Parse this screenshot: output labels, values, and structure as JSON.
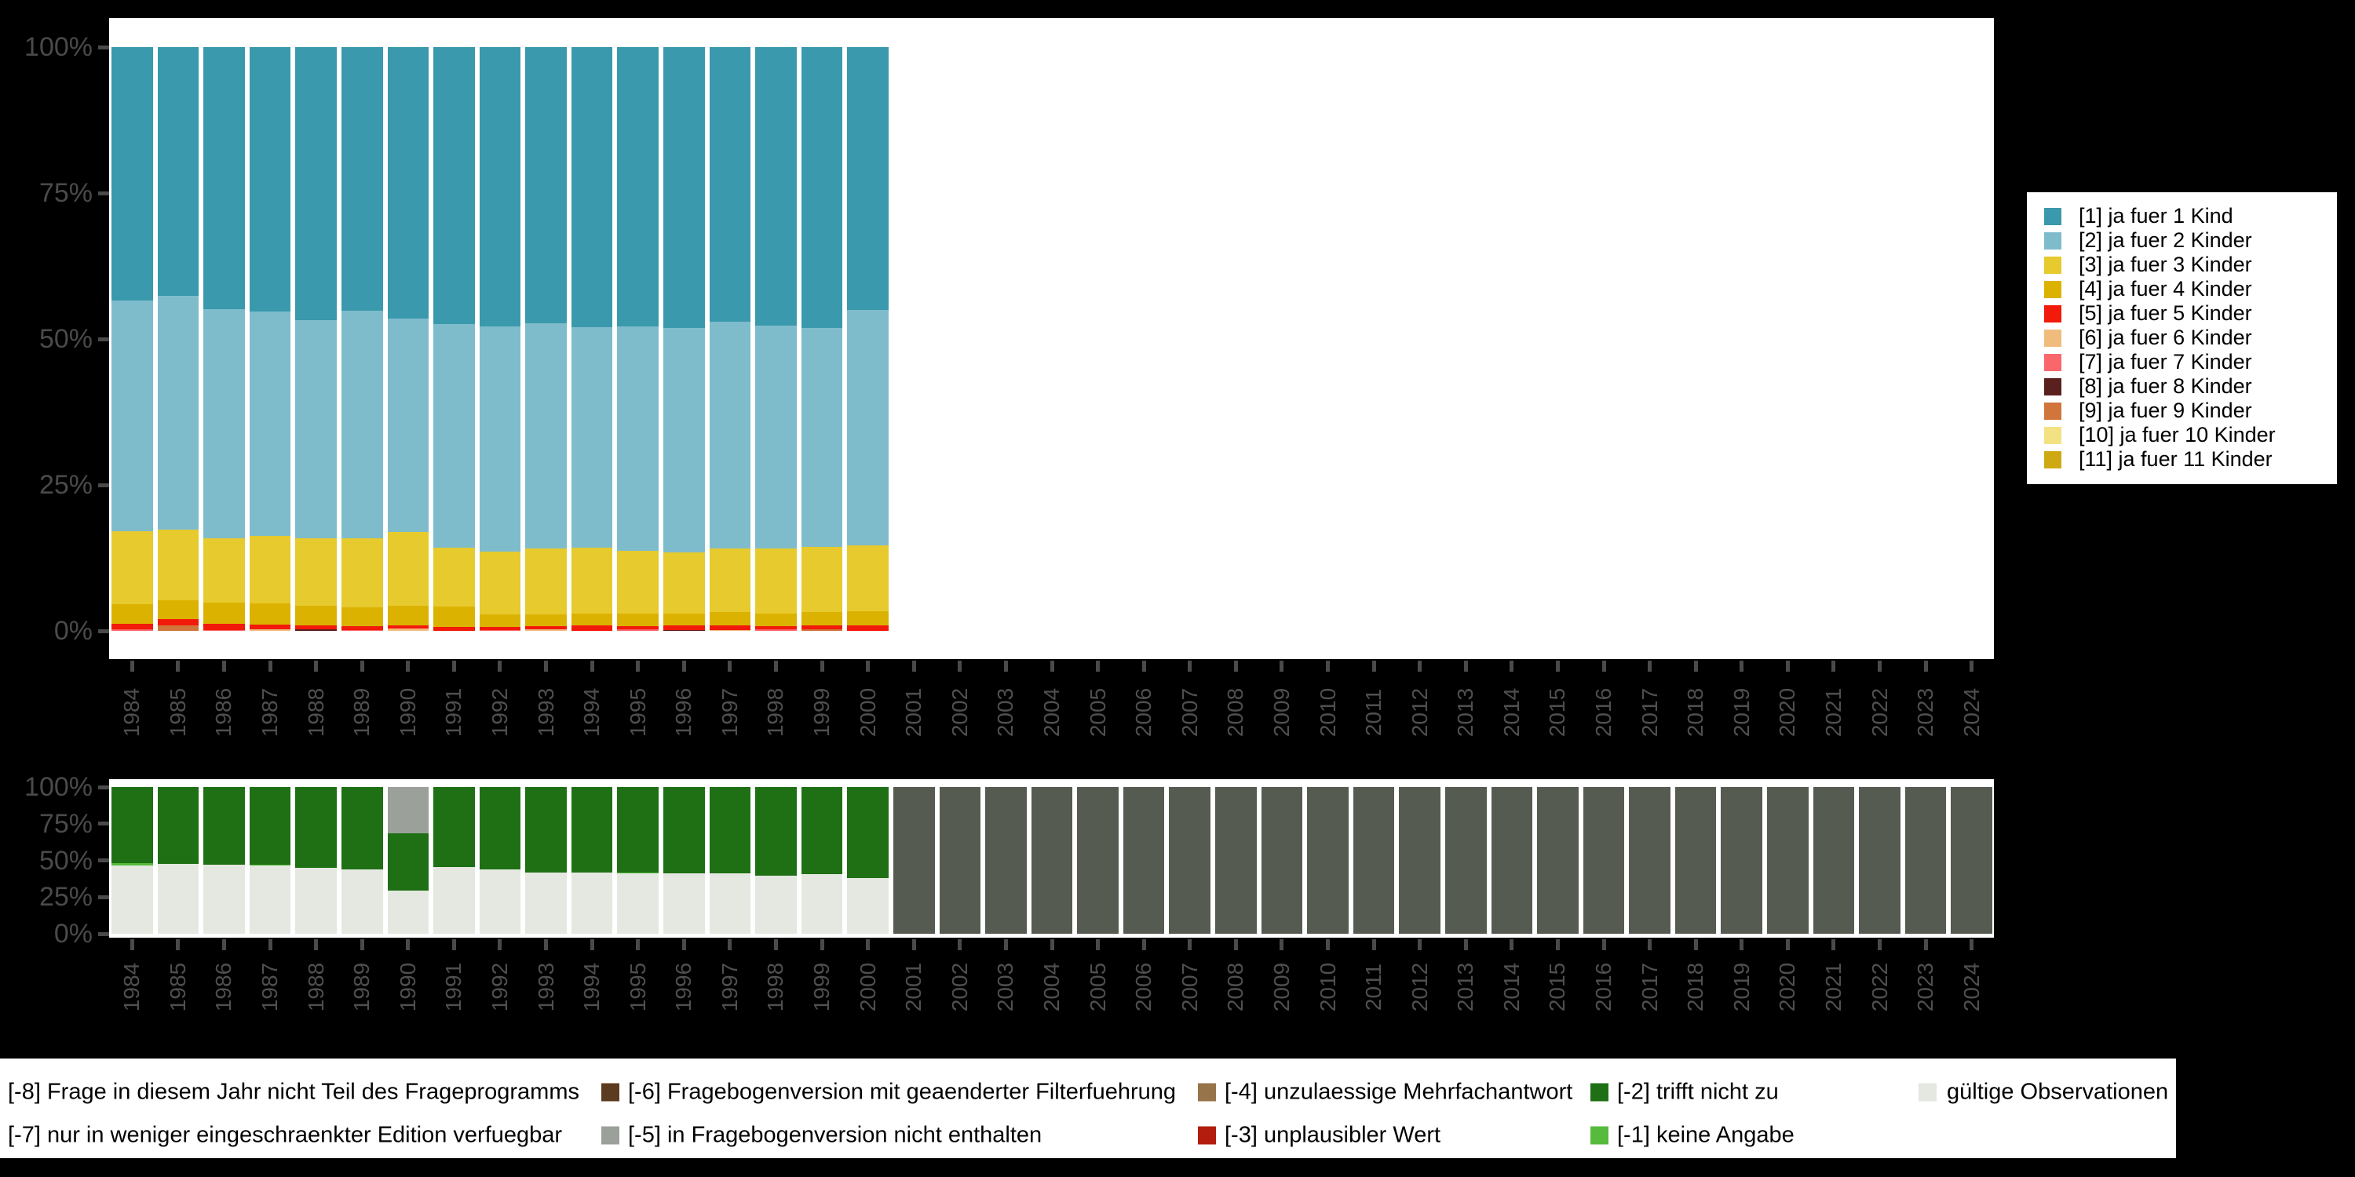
{
  "background_color": "#000000",
  "axis": {
    "tick_color": "#4a4a4a",
    "label_color": "#4f4f4f"
  },
  "chart_data": [
    {
      "type": "bar",
      "stacked": true,
      "title": "",
      "xlabel": "",
      "ylabel": "",
      "ylim": [
        0,
        100
      ],
      "yticks": [
        "0%",
        "25%",
        "50%",
        "75%",
        "100%"
      ],
      "categories": [
        "1984",
        "1985",
        "1986",
        "1987",
        "1988",
        "1989",
        "1990",
        "1991",
        "1992",
        "1993",
        "1994",
        "1995",
        "1996",
        "1997",
        "1998",
        "1999",
        "2000",
        "2001",
        "2002",
        "2003",
        "2004",
        "2005",
        "2006",
        "2007",
        "2008",
        "2009",
        "2010",
        "2011",
        "2012",
        "2013",
        "2014",
        "2015",
        "2016",
        "2017",
        "2018",
        "2019",
        "2020",
        "2021",
        "2022",
        "2023",
        "2024"
      ],
      "legend_position": "right",
      "grid": false,
      "series": [
        {
          "name": "[1] ja fuer 1 Kind",
          "color": "#3a99ac",
          "values_by_year": {
            "1984": 43.4,
            "1985": 42.6,
            "1986": 44.9,
            "1987": 45.3,
            "1988": 46.8,
            "1989": 45.2,
            "1990": 46.5,
            "1991": 47.4,
            "1992": 47.8,
            "1993": 47.3,
            "1994": 48.0,
            "1995": 47.8,
            "1996": 48.1,
            "1997": 47.0,
            "1998": 47.7,
            "1999": 48.1,
            "2000": 45.0
          }
        },
        {
          "name": "[2] ja fuer 2 Kinder",
          "color": "#7fbccb",
          "values_by_year": {
            "1984": 39.5,
            "1985": 40.1,
            "1986": 39.2,
            "1987": 38.4,
            "1988": 37.3,
            "1989": 38.9,
            "1990": 36.6,
            "1991": 38.4,
            "1992": 38.6,
            "1993": 38.6,
            "1994": 37.8,
            "1995": 38.5,
            "1996": 38.5,
            "1997": 38.9,
            "1998": 38.2,
            "1999": 37.5,
            "2000": 40.3
          }
        },
        {
          "name": "[3] ja fuer 3 Kinder",
          "color": "#e6ca2e",
          "values_by_year": {
            "1984": 12.5,
            "1985": 12.1,
            "1986": 11.1,
            "1987": 11.6,
            "1988": 11.6,
            "1989": 11.9,
            "1990": 12.6,
            "1991": 10.0,
            "1992": 10.8,
            "1993": 11.3,
            "1994": 11.3,
            "1995": 10.8,
            "1996": 10.4,
            "1997": 10.9,
            "1998": 11.1,
            "1999": 11.2,
            "2000": 11.4
          }
        },
        {
          "name": "[4] ja fuer 4 Kinder",
          "color": "#dcb200",
          "values_by_year": {
            "1984": 3.4,
            "1985": 3.2,
            "1986": 3.6,
            "1987": 3.6,
            "1988": 3.4,
            "1989": 3.2,
            "1990": 3.4,
            "1991": 3.5,
            "1992": 2.1,
            "1993": 2.0,
            "1994": 2.0,
            "1995": 2.1,
            "1996": 2.1,
            "1997": 2.3,
            "1998": 2.2,
            "1999": 2.3,
            "2000": 2.4
          }
        },
        {
          "name": "[5] ja fuer 5 Kinder",
          "color": "#f21a0a",
          "values_by_year": {
            "1984": 0.9,
            "1985": 1.1,
            "1986": 1.0,
            "1987": 0.8,
            "1988": 0.6,
            "1989": 0.6,
            "1990": 0.5,
            "1991": 0.7,
            "1992": 0.5,
            "1993": 0.5,
            "1994": 0.9,
            "1995": 0.5,
            "1996": 0.7,
            "1997": 0.7,
            "1998": 0.5,
            "1999": 0.6,
            "2000": 0.9
          }
        },
        {
          "name": "[6] ja fuer 6 Kinder",
          "color": "#f0bc7e",
          "values_by_year": {
            "1987": 0.3,
            "1990": 0.4,
            "1993": 0.3,
            "1997": 0.2
          }
        },
        {
          "name": "[7] ja fuer 7 Kinder",
          "color": "#f9676c",
          "values_by_year": {
            "1984": 0.3,
            "1986": 0.2,
            "1989": 0.2,
            "1992": 0.2,
            "1995": 0.3,
            "1998": 0.3
          }
        },
        {
          "name": "[8] ja fuer 8 Kinder",
          "color": "#5a201d",
          "values_by_year": {
            "1988": 0.3,
            "1996": 0.2
          }
        },
        {
          "name": "[9] ja fuer 9 Kinder",
          "color": "#d0753b",
          "values_by_year": {
            "1985": 0.9,
            "1999": 0.3
          }
        },
        {
          "name": "[10] ja fuer 10 Kinder",
          "color": "#f3e283",
          "values_by_year": {}
        },
        {
          "name": "[11] ja fuer 11 Kinder",
          "color": "#cfa913",
          "values_by_year": {}
        }
      ]
    },
    {
      "type": "bar",
      "stacked": true,
      "title": "",
      "xlabel": "",
      "ylabel": "",
      "ylim": [
        0,
        100
      ],
      "yticks": [
        "0%",
        "25%",
        "50%",
        "75%",
        "100%"
      ],
      "categories": [
        "1984",
        "1985",
        "1986",
        "1987",
        "1988",
        "1989",
        "1990",
        "1991",
        "1992",
        "1993",
        "1994",
        "1995",
        "1996",
        "1997",
        "1998",
        "1999",
        "2000",
        "2001",
        "2002",
        "2003",
        "2004",
        "2005",
        "2006",
        "2007",
        "2008",
        "2009",
        "2010",
        "2011",
        "2012",
        "2013",
        "2014",
        "2015",
        "2016",
        "2017",
        "2018",
        "2019",
        "2020",
        "2021",
        "2022",
        "2023",
        "2024"
      ],
      "legend_position": "bottom",
      "grid": false,
      "series": [
        {
          "name": "gültige Observationen",
          "color": "#e4e8e1",
          "values_by_year": {
            "1984": 46.5,
            "1985": 47.6,
            "1986": 47.1,
            "1987": 46.5,
            "1988": 44.9,
            "1989": 43.9,
            "1990": 29.4,
            "1991": 45.5,
            "1992": 43.9,
            "1993": 41.7,
            "1994": 41.7,
            "1995": 41.2,
            "1996": 41.2,
            "1997": 41.2,
            "1998": 39.6,
            "1999": 40.6,
            "2000": 38.0
          }
        },
        {
          "name": "[-1] keine Angabe",
          "color": "#56bb3c",
          "values_by_year": {
            "1984": 1.5,
            "1987": 0.8,
            "1995": 0.5
          }
        },
        {
          "name": "[-2] trifft nicht zu",
          "color": "#1f7015",
          "values_by_year": {
            "1984": 52.0,
            "1985": 52.4,
            "1986": 52.9,
            "1987": 52.7,
            "1988": 55.1,
            "1989": 56.1,
            "1990": 39.0,
            "1991": 54.5,
            "1992": 56.1,
            "1993": 58.3,
            "1994": 58.3,
            "1995": 58.3,
            "1996": 58.8,
            "1997": 58.8,
            "1998": 60.4,
            "1999": 59.4,
            "2000": 62.0
          }
        },
        {
          "name": "[-5] in Fragebogenversion nicht enthalten",
          "color": "#9ba19a",
          "values_by_year": {
            "1990": 31.6
          }
        },
        {
          "name": "[-8] Frage in diesem Jahr nicht Teil des Frageprogramms",
          "color": "#565b52",
          "values_by_year": {
            "2001": 100,
            "2002": 100,
            "2003": 100,
            "2004": 100,
            "2005": 100,
            "2006": 100,
            "2007": 100,
            "2008": 100,
            "2009": 100,
            "2010": 100,
            "2011": 100,
            "2012": 100,
            "2013": 100,
            "2014": 100,
            "2015": 100,
            "2016": 100,
            "2017": 100,
            "2018": 100,
            "2019": 100,
            "2020": 100,
            "2021": 100,
            "2022": 100,
            "2023": 100,
            "2024": 100
          }
        }
      ]
    }
  ],
  "legend_right": {
    "entries": [
      {
        "label": "[1] ja fuer 1 Kind",
        "color": "#3a99ac"
      },
      {
        "label": "[2] ja fuer 2 Kinder",
        "color": "#7fbccb"
      },
      {
        "label": "[3] ja fuer 3 Kinder",
        "color": "#e6ca2e"
      },
      {
        "label": "[4] ja fuer 4 Kinder",
        "color": "#dcb200"
      },
      {
        "label": "[5] ja fuer 5 Kinder",
        "color": "#f21a0a"
      },
      {
        "label": "[6] ja fuer 6 Kinder",
        "color": "#f0bc7e"
      },
      {
        "label": "[7] ja fuer 7 Kinder",
        "color": "#f9676c"
      },
      {
        "label": "[8] ja fuer 8 Kinder",
        "color": "#5a201d"
      },
      {
        "label": "[9] ja fuer 9 Kinder",
        "color": "#d0753b"
      },
      {
        "label": "[10] ja fuer 10 Kinder",
        "color": "#f3e283"
      },
      {
        "label": "[11] ja fuer 11 Kinder",
        "color": "#cfa913"
      }
    ]
  },
  "legend_bottom": {
    "rows": [
      [
        {
          "label": "[-8] Frage in diesem Jahr nicht Teil des Frageprogramms",
          "swatch": null
        },
        {
          "label": "[-6] Fragebogenversion mit geaenderter Filterfuehrung",
          "swatch": "#5c3c20"
        },
        {
          "label": "[-4] unzulaessige Mehrfachantwort",
          "swatch": "#97744a"
        },
        {
          "label": "[-2] trifft nicht zu",
          "swatch": "#1f7015"
        },
        {
          "label": "gültige Observationen",
          "swatch": "#e4e8e1"
        }
      ],
      [
        {
          "label": "[-7] nur in weniger eingeschraenkter Edition verfuegbar",
          "swatch": null
        },
        {
          "label": "[-5] in Fragebogenversion nicht enthalten",
          "swatch": "#9ba19a"
        },
        {
          "label": "[-3] unplausibler Wert",
          "swatch": "#b21d0d"
        },
        {
          "label": "[-1] keine Angabe",
          "swatch": "#56bb3c"
        }
      ]
    ]
  }
}
